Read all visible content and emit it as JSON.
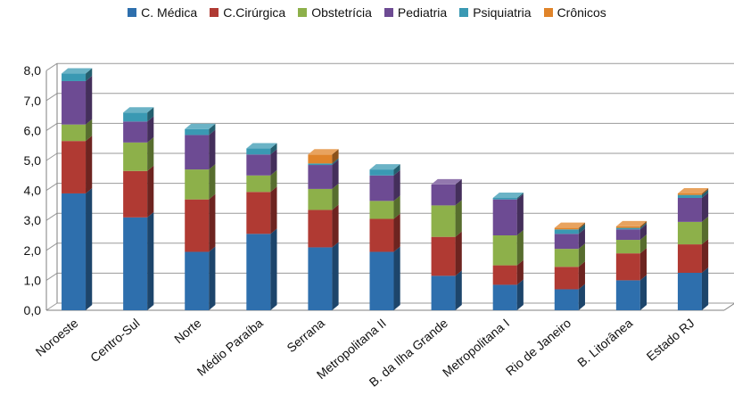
{
  "chart_data": {
    "type": "bar",
    "stacked": true,
    "three_d": true,
    "legend_position": "top",
    "grid": true,
    "ylim": [
      0,
      8
    ],
    "yticks": [
      "0,0",
      "1,0",
      "2,0",
      "3,0",
      "4,0",
      "5,0",
      "6,0",
      "7,0",
      "8,0"
    ],
    "categories": [
      "Noroeste",
      "Centro-Sul",
      "Norte",
      "Médio Paraíba",
      "Serrana",
      "Metropolitana II",
      "B. da Ilha Grande",
      "Metropolitana I",
      "Rio de Janeiro",
      "B. Litorânea",
      "Estado RJ"
    ],
    "series": [
      {
        "name": "C. Médica",
        "color": "#2e6fad",
        "values": [
          3.9,
          3.1,
          1.95,
          2.55,
          2.1,
          1.95,
          1.15,
          0.85,
          0.7,
          1.0,
          1.25
        ]
      },
      {
        "name": "C.Cirúrgica",
        "color": "#b03a33",
        "values": [
          1.75,
          1.55,
          1.75,
          1.4,
          1.25,
          1.1,
          1.3,
          0.65,
          0.75,
          0.9,
          0.95
        ]
      },
      {
        "name": "Obstetrícia",
        "color": "#8db04a",
        "values": [
          0.55,
          0.95,
          1.0,
          0.55,
          0.7,
          0.6,
          1.05,
          1.0,
          0.6,
          0.45,
          0.75
        ]
      },
      {
        "name": "Pediatria",
        "color": "#6d4b93",
        "values": [
          1.45,
          0.7,
          1.15,
          0.7,
          0.8,
          0.85,
          0.7,
          1.2,
          0.5,
          0.35,
          0.8
        ]
      },
      {
        "name": "Psiquiatria",
        "color": "#3a99b3",
        "values": [
          0.25,
          0.3,
          0.2,
          0.2,
          0.05,
          0.2,
          0.0,
          0.05,
          0.15,
          0.05,
          0.1
        ]
      },
      {
        "name": "Crônicos",
        "color": "#e0842a",
        "values": [
          0.0,
          0.0,
          0.0,
          0.0,
          0.3,
          0.0,
          0.0,
          0.0,
          0.05,
          0.05,
          0.05
        ]
      }
    ]
  }
}
